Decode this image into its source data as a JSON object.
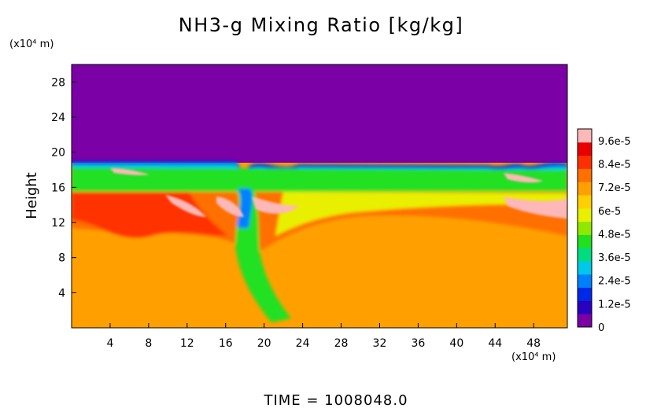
{
  "chart_data": {
    "type": "heatmap",
    "title": "NH3-g Mixing Ratio [kg/kg]",
    "ylabel": "Height",
    "x_unit": "(x10⁴ m)",
    "y_unit": "(x10⁴ m)",
    "footer": "TIME  =  1008048.0",
    "xlim": [
      0,
      51.5
    ],
    "ylim": [
      0,
      30
    ],
    "x_ticks": [
      4,
      8,
      12,
      16,
      20,
      24,
      28,
      32,
      36,
      40,
      44,
      48
    ],
    "y_ticks": [
      4,
      8,
      12,
      16,
      20,
      24,
      28
    ],
    "colorbar": {
      "labels": [
        "9.6e-5",
        "8.4e-5",
        "7.2e-5",
        "6e-5",
        "4.8e-5",
        "3.6e-5",
        "2.4e-5",
        "1.2e-5",
        "0"
      ],
      "values": [
        9.6e-05,
        8.4e-05,
        7.2e-05,
        6e-05,
        4.8e-05,
        3.6e-05,
        2.4e-05,
        1.2e-05,
        0
      ],
      "colors": [
        "#7b00a6",
        "#2a00c0",
        "#0028e8",
        "#0080ff",
        "#00c8e8",
        "#00dc80",
        "#20e020",
        "#90e800",
        "#e8f000",
        "#ffd000",
        "#ffa000",
        "#ff7000",
        "#ff3000",
        "#e80000",
        "#ffb8b8"
      ],
      "min": 0,
      "max": 0.000102
    },
    "field_summary": {
      "above_cloud_top_value": 0,
      "cloud_top_height": 19,
      "upper_layer_value": 6e-05,
      "lower_domain_value": 8e-05,
      "enhanced_layer_value": 9.8e-05
    }
  }
}
